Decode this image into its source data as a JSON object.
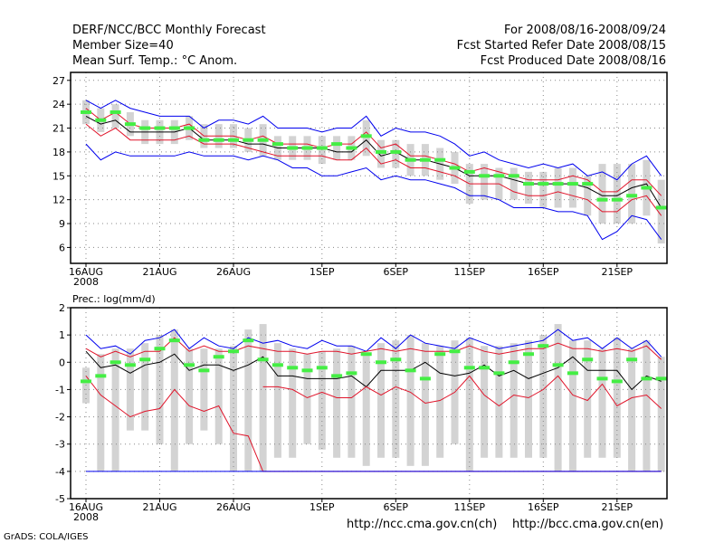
{
  "header": {
    "title": "DERF/NCC/BCC Monthly Forecast",
    "member_size": "Member Size=40",
    "variable": "Mean Surf. Temp.: °C Anom.",
    "period": "For 2008/08/16-2008/09/24",
    "refer_date": "Fcst Started Refer Date 2008/08/15",
    "produced_date": "Fcst Produced Date 2008/08/16"
  },
  "footer": {
    "url_ncc": "http://ncc.cma.gov.cn(ch)",
    "url_bcc": "http://bcc.cma.gov.cn(en)",
    "credit": "GrADS: COLA/IGES"
  },
  "colors": {
    "box": "#d3d3d3",
    "median": "#44ee44",
    "mean": "#000000",
    "inner": "#e0142a",
    "outer": "#0000ee",
    "grid": "#888888"
  },
  "chart_data": [
    {
      "type": "line",
      "title": "Mean Surf. Temp.: °C Anom.",
      "xlabel": "",
      "ylabel": "",
      "ylim": [
        4,
        28
      ],
      "yticks": [
        6,
        9,
        12,
        15,
        18,
        21,
        24,
        27
      ],
      "xticks": [
        {
          "day": 1,
          "label": "16AUG",
          "sub": "2008"
        },
        {
          "day": 6,
          "label": "21AUG"
        },
        {
          "day": 11,
          "label": "26AUG"
        },
        {
          "day": 17,
          "label": "1SEP"
        },
        {
          "day": 22,
          "label": "6SEP"
        },
        {
          "day": 27,
          "label": "11SEP"
        },
        {
          "day": 32,
          "label": "16SEP"
        },
        {
          "day": 37,
          "label": "21SEP"
        }
      ],
      "days": [
        1,
        2,
        3,
        4,
        5,
        6,
        7,
        8,
        9,
        10,
        11,
        12,
        13,
        14,
        15,
        16,
        17,
        18,
        19,
        20,
        21,
        22,
        23,
        24,
        25,
        26,
        27,
        28,
        29,
        30,
        31,
        32,
        33,
        34,
        35,
        36,
        37,
        38,
        39,
        40
      ],
      "series": [
        {
          "name": "upper",
          "values": [
            24.5,
            23.5,
            24.5,
            23.5,
            23,
            22.5,
            22.5,
            22.5,
            21,
            22,
            22,
            21.5,
            22.5,
            21,
            21,
            21,
            20.5,
            21,
            21,
            22.5,
            20,
            21,
            20.5,
            20.5,
            20,
            19,
            17.5,
            18,
            17,
            16.5,
            16,
            16.5,
            16,
            16.5,
            15,
            15.5,
            14.5,
            16.5,
            17.5,
            15
          ]
        },
        {
          "name": "upper_inner",
          "values": [
            23.5,
            22,
            23,
            21.5,
            21,
            21,
            21,
            21.5,
            20,
            20,
            20,
            19.5,
            20,
            19,
            19,
            19,
            18.5,
            19,
            19,
            20.5,
            18.5,
            19,
            17.5,
            17.5,
            17,
            16.5,
            15.5,
            16,
            15.5,
            15,
            14.5,
            14.5,
            14.5,
            15,
            14.5,
            13,
            13,
            14.5,
            14.5,
            12.5
          ]
        },
        {
          "name": "mean",
          "values": [
            22.5,
            21.5,
            22,
            20.5,
            20.5,
            20.5,
            20.5,
            21,
            19.5,
            19.5,
            19.5,
            19,
            19,
            18.5,
            18.5,
            18.5,
            18.5,
            18,
            18,
            19.5,
            17.5,
            18,
            17,
            17,
            16.5,
            16,
            15,
            15,
            15,
            14.5,
            14,
            14,
            14,
            14,
            13.5,
            12.5,
            12.5,
            13.5,
            14,
            11
          ]
        },
        {
          "name": "lower_inner",
          "values": [
            21.5,
            20,
            21,
            19.5,
            19.5,
            19.5,
            19.5,
            20,
            19,
            19,
            19,
            18.5,
            18,
            17.5,
            17.5,
            17.5,
            17.5,
            17,
            17,
            18.5,
            16.5,
            17,
            16,
            16,
            15.5,
            15,
            14,
            14,
            14,
            13,
            12.5,
            12.5,
            13,
            12.5,
            12,
            10.5,
            10.5,
            12,
            12.5,
            10
          ]
        },
        {
          "name": "lower",
          "values": [
            19,
            17,
            18,
            17.5,
            17.5,
            17.5,
            17.5,
            18,
            17.5,
            17.5,
            17.5,
            17,
            17.5,
            17,
            16,
            16,
            15,
            15,
            15.5,
            16,
            14.5,
            15,
            14.5,
            14.5,
            14,
            13.5,
            12.5,
            12.5,
            12,
            11,
            11,
            11,
            10.5,
            10.5,
            10,
            7,
            8,
            10,
            9.5,
            7
          ]
        }
      ],
      "medians": [
        23,
        22,
        23,
        21.5,
        21,
        21,
        21,
        21,
        19.5,
        19.5,
        19.5,
        19.5,
        19.5,
        19,
        18.5,
        18.5,
        18.5,
        19,
        18.5,
        20,
        18,
        18,
        17,
        17,
        17,
        16,
        15.5,
        15,
        15,
        15,
        14,
        14,
        14,
        14,
        14,
        12,
        12,
        12.5,
        13.5,
        11
      ],
      "boxes": [
        {
          "lo": 21.5,
          "hi": 24.5
        },
        {
          "lo": 20.5,
          "hi": 23.5
        },
        {
          "lo": 21,
          "hi": 24
        },
        {
          "lo": 20,
          "hi": 23
        },
        {
          "lo": 19,
          "hi": 22
        },
        {
          "lo": 19,
          "hi": 22
        },
        {
          "lo": 19,
          "hi": 22
        },
        {
          "lo": 19.5,
          "hi": 22.5
        },
        {
          "lo": 18.5,
          "hi": 21.5
        },
        {
          "lo": 18.5,
          "hi": 21.5
        },
        {
          "lo": 18.5,
          "hi": 21.5
        },
        {
          "lo": 18,
          "hi": 21
        },
        {
          "lo": 17.5,
          "hi": 21.5
        },
        {
          "lo": 17,
          "hi": 20
        },
        {
          "lo": 17,
          "hi": 20
        },
        {
          "lo": 17,
          "hi": 20
        },
        {
          "lo": 16.5,
          "hi": 20
        },
        {
          "lo": 17,
          "hi": 20
        },
        {
          "lo": 17,
          "hi": 20
        },
        {
          "lo": 17.5,
          "hi": 22
        },
        {
          "lo": 16,
          "hi": 19.5
        },
        {
          "lo": 16,
          "hi": 19.5
        },
        {
          "lo": 15,
          "hi": 19
        },
        {
          "lo": 15,
          "hi": 19
        },
        {
          "lo": 14.5,
          "hi": 18.5
        },
        {
          "lo": 14,
          "hi": 18
        },
        {
          "lo": 11.5,
          "hi": 16.5
        },
        {
          "lo": 12,
          "hi": 16.5
        },
        {
          "lo": 12,
          "hi": 16
        },
        {
          "lo": 12,
          "hi": 16
        },
        {
          "lo": 11.5,
          "hi": 15.5
        },
        {
          "lo": 11,
          "hi": 15.5
        },
        {
          "lo": 11,
          "hi": 16
        },
        {
          "lo": 11,
          "hi": 16
        },
        {
          "lo": 10,
          "hi": 15
        },
        {
          "lo": 9,
          "hi": 16.5
        },
        {
          "lo": 9,
          "hi": 16.5
        },
        {
          "lo": 9,
          "hi": 16.5
        },
        {
          "lo": 10,
          "hi": 17
        },
        {
          "lo": 6.5,
          "hi": 14.5
        }
      ]
    },
    {
      "type": "line",
      "title": "Prec.: log(mm/d)",
      "xlabel": "",
      "ylabel": "",
      "ylim": [
        -5,
        2
      ],
      "yticks": [
        -5,
        -4,
        -3,
        -2,
        -1,
        0,
        1,
        2
      ],
      "xticks": [
        {
          "day": 1,
          "label": "16AUG",
          "sub": "2008"
        },
        {
          "day": 6,
          "label": "21AUG"
        },
        {
          "day": 11,
          "label": "26AUG"
        },
        {
          "day": 17,
          "label": "1SEP"
        },
        {
          "day": 22,
          "label": "6SEP"
        },
        {
          "day": 27,
          "label": "11SEP"
        },
        {
          "day": 32,
          "label": "16SEP"
        },
        {
          "day": 37,
          "label": "21SEP"
        }
      ],
      "days": [
        1,
        2,
        3,
        4,
        5,
        6,
        7,
        8,
        9,
        10,
        11,
        12,
        13,
        14,
        15,
        16,
        17,
        18,
        19,
        20,
        21,
        22,
        23,
        24,
        25,
        26,
        27,
        28,
        29,
        30,
        31,
        32,
        33,
        34,
        35,
        36,
        37,
        38,
        39,
        40
      ],
      "series": [
        {
          "name": "upper",
          "values": [
            1.0,
            0.5,
            0.6,
            0.3,
            0.8,
            0.9,
            1.2,
            0.5,
            0.9,
            0.6,
            0.5,
            0.9,
            0.7,
            0.8,
            0.6,
            0.5,
            0.8,
            0.6,
            0.6,
            0.4,
            0.9,
            0.5,
            1.0,
            0.7,
            0.6,
            0.5,
            0.9,
            0.7,
            0.5,
            0.6,
            0.7,
            0.8,
            1.2,
            0.8,
            0.9,
            0.5,
            0.9,
            0.5,
            0.8,
            0.2
          ]
        },
        {
          "name": "upper_inner",
          "values": [
            0.5,
            0.2,
            0.4,
            0.2,
            0.4,
            0.4,
            0.9,
            0.4,
            0.6,
            0.4,
            0.4,
            0.6,
            0.5,
            0.4,
            0.4,
            0.3,
            0.4,
            0.4,
            0.3,
            0.4,
            0.5,
            0.4,
            0.5,
            0.4,
            0.4,
            0.4,
            0.6,
            0.4,
            0.3,
            0.4,
            0.5,
            0.5,
            0.7,
            0.5,
            0.5,
            0.4,
            0.5,
            0.4,
            0.6,
            0.1
          ]
        },
        {
          "name": "mean",
          "values": [
            0.4,
            -0.2,
            -0.1,
            -0.4,
            -0.1,
            0,
            0.3,
            -0.3,
            -0.1,
            -0.1,
            -0.3,
            -0.1,
            0.2,
            -0.5,
            -0.5,
            -0.6,
            -0.6,
            -0.6,
            -0.5,
            -0.9,
            -0.3,
            -0.3,
            -0.3,
            0,
            -0.4,
            -0.5,
            -0.4,
            -0.1,
            -0.5,
            -0.3,
            -0.6,
            -0.4,
            -0.2,
            0.2,
            -0.3,
            -0.3,
            -0.3,
            -1.0,
            -0.5,
            -0.7
          ]
        },
        {
          "name": "lower_inner",
          "values": [
            -0.5,
            -1.2,
            -1.6,
            -2.0,
            -1.8,
            -1.7,
            -1.0,
            -1.6,
            -1.8,
            -1.6,
            -2.6,
            -2.7,
            -4.0,
            -4.0,
            -4.0,
            -4.0,
            -4.0,
            -4.0,
            -4.0,
            -4.0,
            -4.0,
            -4.0,
            -4.0,
            -4.0,
            -4.0,
            -4.0,
            -4.0,
            -4.0,
            -4.0,
            -4.0,
            -4.0,
            -4.0,
            -4.0,
            -4.0,
            -4.0,
            -4.0,
            -4.0,
            -4.0,
            -4.0,
            -4.0
          ]
        },
        {
          "name": "lower_inner_b",
          "values": [
            null,
            null,
            null,
            null,
            null,
            null,
            null,
            null,
            null,
            null,
            null,
            null,
            -0.9,
            -0.9,
            -1.0,
            -1.3,
            -1.1,
            -1.3,
            -1.3,
            -0.9,
            -1.2,
            -0.9,
            -1.1,
            -1.5,
            -1.4,
            -1.1,
            -0.5,
            -1.2,
            -1.6,
            -1.2,
            -1.3,
            -1.0,
            -0.5,
            -1.2,
            -1.4,
            -0.8,
            -1.6,
            -1.3,
            -1.2,
            -1.7
          ]
        },
        {
          "name": "lower",
          "values": [
            -4,
            -4,
            -4,
            -4,
            -4,
            -4,
            -4,
            -4,
            -4,
            -4,
            -4,
            -4,
            -4,
            -4,
            -4,
            -4,
            -4,
            -4,
            -4,
            -4,
            -4,
            -4,
            -4,
            -4,
            -4,
            -4,
            -4,
            -4,
            -4,
            -4,
            -4,
            -4,
            -4,
            -4,
            -4,
            -4,
            -4,
            -4,
            -4,
            -4
          ]
        }
      ],
      "medians": [
        -0.7,
        -0.5,
        0,
        -0.1,
        0.1,
        0.5,
        0.8,
        -0.1,
        -0.3,
        0.2,
        0.4,
        0.8,
        0.1,
        -0.1,
        -0.2,
        -0.3,
        -0.2,
        -0.5,
        -0.4,
        0.3,
        0,
        0.1,
        -0.3,
        -0.6,
        0.3,
        0.4,
        -0.2,
        -0.2,
        -0.4,
        0,
        0.3,
        0.6,
        -0.1,
        -0.4,
        0.1,
        -0.6,
        -0.7,
        0.1,
        -0.6,
        -0.6
      ],
      "boxes": [
        {
          "lo": -1.5,
          "hi": -0.2
        },
        {
          "lo": -4,
          "hi": 0.3
        },
        {
          "lo": -4,
          "hi": 0.5
        },
        {
          "lo": -2.5,
          "hi": 0.5
        },
        {
          "lo": -2.5,
          "hi": 0.7
        },
        {
          "lo": -3,
          "hi": 1.0
        },
        {
          "lo": -4,
          "hi": 1.2
        },
        {
          "lo": -3,
          "hi": 0.5
        },
        {
          "lo": -2.5,
          "hi": 0.5
        },
        {
          "lo": -3,
          "hi": 0.5
        },
        {
          "lo": -4,
          "hi": 0.6
        },
        {
          "lo": -4,
          "hi": 1.2
        },
        {
          "lo": -4,
          "hi": 1.4
        },
        {
          "lo": -3.5,
          "hi": 0.7
        },
        {
          "lo": -3.5,
          "hi": 0.5
        },
        {
          "lo": -3,
          "hi": 0.3
        },
        {
          "lo": -3.2,
          "hi": 0.4
        },
        {
          "lo": -3.5,
          "hi": 0.5
        },
        {
          "lo": -3.5,
          "hi": 0.6
        },
        {
          "lo": -3.8,
          "hi": 0.3
        },
        {
          "lo": -3.5,
          "hi": 0.7
        },
        {
          "lo": -3.5,
          "hi": 0.8
        },
        {
          "lo": -3.8,
          "hi": 1.0
        },
        {
          "lo": -3.8,
          "hi": 0.7
        },
        {
          "lo": -3.5,
          "hi": 0.6
        },
        {
          "lo": -3,
          "hi": 0.8
        },
        {
          "lo": -4,
          "hi": 0.9
        },
        {
          "lo": -3.5,
          "hi": 0.6
        },
        {
          "lo": -3.5,
          "hi": 0.6
        },
        {
          "lo": -3.5,
          "hi": 0.7
        },
        {
          "lo": -3.5,
          "hi": 0.8
        },
        {
          "lo": -3.5,
          "hi": 1.0
        },
        {
          "lo": -4,
          "hi": 1.4
        },
        {
          "lo": -4,
          "hi": 0.8
        },
        {
          "lo": -3.5,
          "hi": 0.8
        },
        {
          "lo": -3.5,
          "hi": 0.5
        },
        {
          "lo": -3.5,
          "hi": 0.9
        },
        {
          "lo": -4,
          "hi": 0.5
        },
        {
          "lo": -4,
          "hi": 0.8
        },
        {
          "lo": -4,
          "hi": 0.2
        }
      ]
    }
  ]
}
